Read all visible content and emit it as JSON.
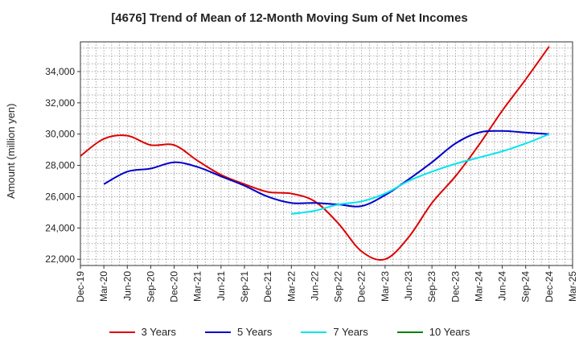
{
  "chart_data": {
    "type": "line",
    "title": "[4676]  Trend of Mean of 12-Month Moving Sum of Net Incomes",
    "ylabel": "Amount (million yen)",
    "xlabel": "",
    "ylim": [
      21600,
      35900
    ],
    "yticks": [
      22000,
      24000,
      26000,
      28000,
      30000,
      32000,
      34000
    ],
    "ytick_labels": [
      "22,000",
      "24,000",
      "26,000",
      "28,000",
      "30,000",
      "32,000",
      "34,000"
    ],
    "xticks": [
      "Dec-19",
      "Mar-20",
      "Jun-20",
      "Sep-20",
      "Dec-20",
      "Mar-21",
      "Jun-21",
      "Sep-21",
      "Dec-21",
      "Mar-22",
      "Jun-22",
      "Sep-22",
      "Dec-22",
      "Mar-23",
      "Jun-23",
      "Sep-23",
      "Dec-23",
      "Mar-24",
      "Jun-24",
      "Sep-24",
      "Dec-24",
      "Mar-25"
    ],
    "grid": true,
    "legend_position": "bottom",
    "series": [
      {
        "name": "3 Years",
        "color": "#dd0000",
        "x": [
          "Dec-19",
          "Mar-20",
          "Jun-20",
          "Sep-20",
          "Dec-20",
          "Mar-21",
          "Jun-21",
          "Sep-21",
          "Dec-21",
          "Mar-22",
          "Jun-22",
          "Sep-22",
          "Dec-22",
          "Mar-23",
          "Jun-23",
          "Sep-23",
          "Dec-23",
          "Mar-24",
          "Jun-24",
          "Sep-24",
          "Dec-24"
        ],
        "values": [
          28600,
          29700,
          29900,
          29300,
          29300,
          28300,
          27400,
          26800,
          26300,
          26200,
          25700,
          24300,
          22500,
          22000,
          23400,
          25600,
          27300,
          29300,
          31500,
          33500,
          35600
        ]
      },
      {
        "name": "5 Years",
        "color": "#0000cc",
        "x": [
          "Mar-20",
          "Jun-20",
          "Sep-20",
          "Dec-20",
          "Mar-21",
          "Jun-21",
          "Sep-21",
          "Dec-21",
          "Mar-22",
          "Jun-22",
          "Sep-22",
          "Dec-22",
          "Mar-23",
          "Jun-23",
          "Sep-23",
          "Dec-23",
          "Mar-24",
          "Jun-24",
          "Sep-24",
          "Dec-24"
        ],
        "values": [
          26800,
          27600,
          27800,
          28200,
          27900,
          27300,
          26700,
          26000,
          25600,
          25600,
          25500,
          25400,
          26100,
          27100,
          28200,
          29400,
          30100,
          30200,
          30100,
          30000
        ]
      },
      {
        "name": "7 Years",
        "color": "#00e5ee",
        "x": [
          "Mar-22",
          "Jun-22",
          "Sep-22",
          "Dec-22",
          "Mar-23",
          "Jun-23",
          "Sep-23",
          "Dec-23",
          "Mar-24",
          "Jun-24",
          "Sep-24",
          "Dec-24"
        ],
        "values": [
          24900,
          25100,
          25500,
          25700,
          26200,
          27000,
          27600,
          28100,
          28500,
          28900,
          29400,
          30000
        ]
      },
      {
        "name": "10 Years",
        "color": "#008000",
        "x": [],
        "values": []
      }
    ]
  }
}
